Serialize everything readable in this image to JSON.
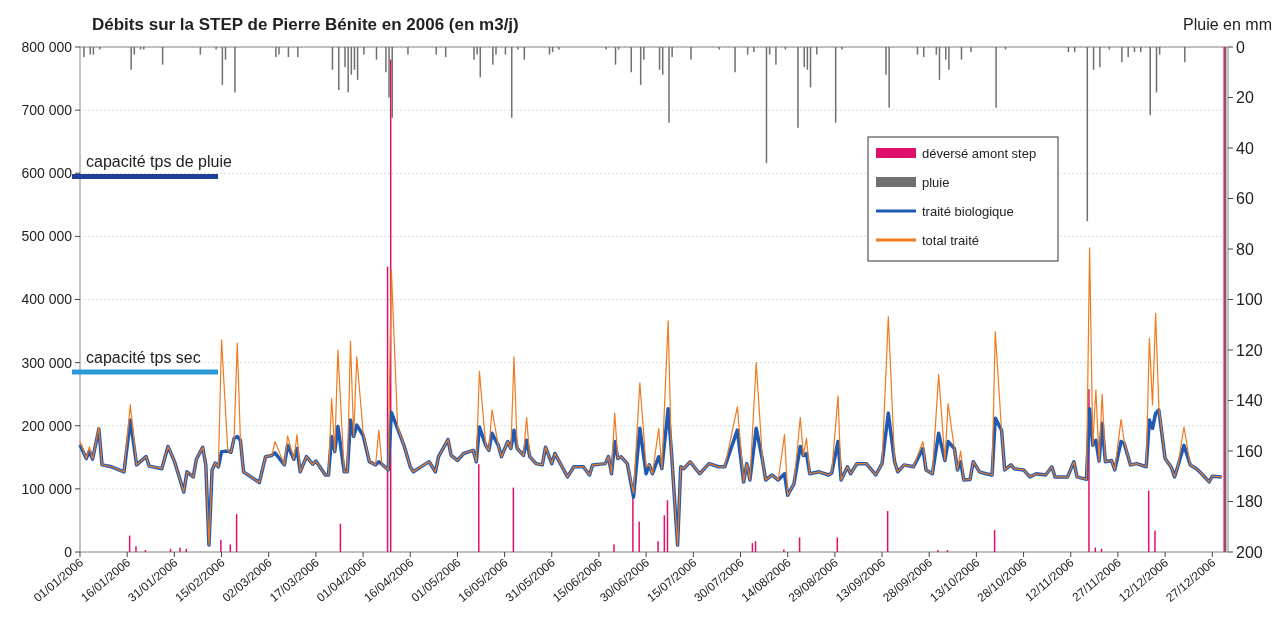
{
  "chart_data": {
    "type": "line",
    "title": "Débits sur la  STEP de Pierre Bénite en 2006 (en m3/j)",
    "y2label": "Pluie en mm",
    "xlim": [
      "2006-01-01",
      "2007-01-01"
    ],
    "xticks": [
      {
        "value": "2006-01-01",
        "label": "01/01/2006"
      },
      {
        "value": "2006-01-16",
        "label": "16/01/2006"
      },
      {
        "value": "2006-01-31",
        "label": "31/01/2006"
      },
      {
        "value": "2006-02-15",
        "label": "15/02/2006"
      },
      {
        "value": "2006-03-02",
        "label": "02/03/2006"
      },
      {
        "value": "2006-03-17",
        "label": "17/03/2006"
      },
      {
        "value": "2006-04-01",
        "label": "01/04/2006"
      },
      {
        "value": "2006-04-16",
        "label": "16/04/2006"
      },
      {
        "value": "2006-05-01",
        "label": "01/05/2006"
      },
      {
        "value": "2006-05-16",
        "label": "16/05/2006"
      },
      {
        "value": "2006-05-31",
        "label": "31/05/2006"
      },
      {
        "value": "2006-06-15",
        "label": "15/06/2006"
      },
      {
        "value": "2006-06-30",
        "label": "30/06/2006"
      },
      {
        "value": "2006-07-15",
        "label": "15/07/2006"
      },
      {
        "value": "2006-07-30",
        "label": "30/07/2006"
      },
      {
        "value": "2006-08-14",
        "label": "14/08/2006"
      },
      {
        "value": "2006-08-29",
        "label": "29/08/2006"
      },
      {
        "value": "2006-09-13",
        "label": "13/09/2006"
      },
      {
        "value": "2006-09-28",
        "label": "28/09/2006"
      },
      {
        "value": "2006-10-13",
        "label": "13/10/2006"
      },
      {
        "value": "2006-10-28",
        "label": "28/10/2006"
      },
      {
        "value": "2006-11-12",
        "label": "12/11/2006"
      },
      {
        "value": "2006-11-27",
        "label": "27/11/2006"
      },
      {
        "value": "2006-12-12",
        "label": "12/12/2006"
      },
      {
        "value": "2006-12-27",
        "label": "27/12/2006"
      }
    ],
    "ylim": [
      0,
      800000
    ],
    "yticks": [
      {
        "value": 0,
        "label": "0"
      },
      {
        "value": 100000,
        "label": "100 000"
      },
      {
        "value": 200000,
        "label": "200 000"
      },
      {
        "value": 300000,
        "label": "300 000"
      },
      {
        "value": 400000,
        "label": "400 000"
      },
      {
        "value": 500000,
        "label": "500 000"
      },
      {
        "value": 600000,
        "label": "600 000"
      },
      {
        "value": 700000,
        "label": "700 000"
      },
      {
        "value": 800000,
        "label": "800 000"
      }
    ],
    "y2lim": [
      200,
      0
    ],
    "y2ticks": [
      0,
      20,
      40,
      60,
      80,
      100,
      120,
      140,
      160,
      180,
      200
    ],
    "grid": "y",
    "legend": "top right",
    "ref_lines": [
      {
        "axis": "y",
        "value": 595000,
        "label": "capacité tps de pluie",
        "color": "#1f3f99"
      },
      {
        "axis": "y",
        "value": 285000,
        "label": "capacité tps sec",
        "color": "#2b9ad6"
      }
    ],
    "x": [
      "2006-01-01",
      "2006-01-03",
      "2006-01-04",
      "2006-01-05",
      "2006-01-07",
      "2006-01-08",
      "2006-01-11",
      "2006-01-15",
      "2006-01-17",
      "2006-01-19",
      "2006-01-22",
      "2006-01-23",
      "2006-01-27",
      "2006-01-29",
      "2006-01-31",
      "2006-02-03",
      "2006-02-04",
      "2006-02-06",
      "2006-02-07",
      "2006-02-09",
      "2006-02-10",
      "2006-02-11",
      "2006-02-12",
      "2006-02-13",
      "2006-02-14",
      "2006-02-15",
      "2006-02-17",
      "2006-02-18",
      "2006-02-19",
      "2006-02-20",
      "2006-02-21",
      "2006-02-22",
      "2006-02-27",
      "2006-03-01",
      "2006-03-03",
      "2006-03-04",
      "2006-03-07",
      "2006-03-08",
      "2006-03-10",
      "2006-03-11",
      "2006-03-12",
      "2006-03-14",
      "2006-03-16",
      "2006-03-17",
      "2006-03-20",
      "2006-03-21",
      "2006-03-22",
      "2006-03-23",
      "2006-03-24",
      "2006-03-26",
      "2006-03-27",
      "2006-03-28",
      "2006-03-29",
      "2006-03-30",
      "2006-04-01",
      "2006-04-03",
      "2006-04-05",
      "2006-04-06",
      "2006-04-07",
      "2006-04-09",
      "2006-04-10",
      "2006-04-12",
      "2006-04-14",
      "2006-04-16",
      "2006-04-17",
      "2006-04-21",
      "2006-04-22",
      "2006-04-24",
      "2006-04-25",
      "2006-04-28",
      "2006-04-29",
      "2006-05-01",
      "2006-05-03",
      "2006-05-06",
      "2006-05-07",
      "2006-05-08",
      "2006-05-10",
      "2006-05-11",
      "2006-05-12",
      "2006-05-14",
      "2006-05-15",
      "2006-05-17",
      "2006-05-18",
      "2006-05-19",
      "2006-05-20",
      "2006-05-22",
      "2006-05-23",
      "2006-05-24",
      "2006-05-26",
      "2006-05-28",
      "2006-05-29",
      "2006-05-31",
      "2006-06-01",
      "2006-06-05",
      "2006-06-07",
      "2006-06-10",
      "2006-06-12",
      "2006-06-13",
      "2006-06-17",
      "2006-06-18",
      "2006-06-19",
      "2006-06-20",
      "2006-06-21",
      "2006-06-22",
      "2006-06-24",
      "2006-06-26",
      "2006-06-28",
      "2006-06-30",
      "2006-07-01",
      "2006-07-02",
      "2006-07-04",
      "2006-07-05",
      "2006-07-07",
      "2006-07-08",
      "2006-07-10",
      "2006-07-11",
      "2006-07-12",
      "2006-07-14",
      "2006-07-17",
      "2006-07-20",
      "2006-07-23",
      "2006-07-25",
      "2006-07-29",
      "2006-07-31",
      "2006-08-01",
      "2006-08-02",
      "2006-08-04",
      "2006-08-06",
      "2006-08-07",
      "2006-08-09",
      "2006-08-11",
      "2006-08-13",
      "2006-08-14",
      "2006-08-16",
      "2006-08-18",
      "2006-08-19",
      "2006-08-20",
      "2006-08-21",
      "2006-08-24",
      "2006-08-27",
      "2006-08-28",
      "2006-08-30",
      "2006-08-31",
      "2006-09-02",
      "2006-09-03",
      "2006-09-05",
      "2006-09-08",
      "2006-09-11",
      "2006-09-13",
      "2006-09-15",
      "2006-09-17",
      "2006-09-18",
      "2006-09-20",
      "2006-09-23",
      "2006-09-26",
      "2006-09-27",
      "2006-09-29",
      "2006-10-01",
      "2006-10-03",
      "2006-10-04",
      "2006-10-06",
      "2006-10-07",
      "2006-10-08",
      "2006-10-09",
      "2006-10-11",
      "2006-10-12",
      "2006-10-14",
      "2006-10-16",
      "2006-10-18",
      "2006-10-19",
      "2006-10-21",
      "2006-10-22",
      "2006-10-24",
      "2006-10-25",
      "2006-10-28",
      "2006-10-30",
      "2006-11-01",
      "2006-11-04",
      "2006-11-06",
      "2006-11-07",
      "2006-11-11",
      "2006-11-13",
      "2006-11-14",
      "2006-11-17",
      "2006-11-18",
      "2006-11-19",
      "2006-11-20",
      "2006-11-21",
      "2006-11-22",
      "2006-11-23",
      "2006-11-25",
      "2006-11-26",
      "2006-11-28",
      "2006-11-29",
      "2006-12-01",
      "2006-12-03",
      "2006-12-06",
      "2006-12-07",
      "2006-12-08",
      "2006-12-09",
      "2006-12-10",
      "2006-12-12",
      "2006-12-14",
      "2006-12-15",
      "2006-12-16",
      "2006-12-18",
      "2006-12-20",
      "2006-12-22",
      "2006-12-24",
      "2006-12-26",
      "2006-12-27",
      "2006-12-30"
    ],
    "series": [
      {
        "name": "déversé amont step",
        "type": "bar",
        "color": "#e0106a",
        "x": [
          "2006-01-17",
          "2006-01-19",
          "2006-01-22",
          "2006-01-30",
          "2006-02-02",
          "2006-02-04",
          "2006-02-15",
          "2006-02-18",
          "2006-02-20",
          "2006-03-25",
          "2006-04-09",
          "2006-04-10",
          "2006-05-08",
          "2006-05-19",
          "2006-06-20",
          "2006-06-26",
          "2006-06-28",
          "2006-07-04",
          "2006-07-06",
          "2006-07-07",
          "2006-08-03",
          "2006-08-04",
          "2006-08-13",
          "2006-08-18",
          "2006-08-30",
          "2006-09-15",
          "2006-10-01",
          "2006-10-04",
          "2006-10-19",
          "2006-11-18",
          "2006-11-20",
          "2006-11-22",
          "2006-12-07",
          "2006-12-09",
          "2006-12-31"
        ],
        "values": [
          26000,
          9000,
          3000,
          5000,
          7000,
          5000,
          19000,
          12000,
          60000,
          45000,
          452000,
          780000,
          139000,
          102000,
          12000,
          86000,
          48000,
          17000,
          58000,
          82000,
          14000,
          17000,
          4000,
          23000,
          23000,
          65000,
          3000,
          3000,
          35000,
          258000,
          7000,
          5000,
          97000,
          34000,
          800000
        ]
      },
      {
        "name": "pluie",
        "type": "bar",
        "axis": "y2",
        "color": "#707070",
        "x": [
          "2006-01-02",
          "2006-01-04",
          "2006-01-05",
          "2006-01-07",
          "2006-01-17",
          "2006-01-18",
          "2006-01-20",
          "2006-01-21",
          "2006-01-27",
          "2006-02-08",
          "2006-02-13",
          "2006-02-15",
          "2006-02-16",
          "2006-02-19",
          "2006-03-04",
          "2006-03-05",
          "2006-03-08",
          "2006-03-11",
          "2006-03-22",
          "2006-03-24",
          "2006-03-26",
          "2006-03-27",
          "2006-03-28",
          "2006-03-29",
          "2006-03-30",
          "2006-04-01",
          "2006-04-05",
          "2006-04-08",
          "2006-04-09",
          "2006-04-10",
          "2006-04-15",
          "2006-04-24",
          "2006-04-27",
          "2006-05-06",
          "2006-05-07",
          "2006-05-08",
          "2006-05-12",
          "2006-05-13",
          "2006-05-16",
          "2006-05-18",
          "2006-05-20",
          "2006-05-22",
          "2006-05-30",
          "2006-05-31",
          "2006-06-02",
          "2006-06-17",
          "2006-06-20",
          "2006-06-21",
          "2006-06-25",
          "2006-06-28",
          "2006-06-29",
          "2006-07-04",
          "2006-07-05",
          "2006-07-07",
          "2006-07-08",
          "2006-07-14",
          "2006-07-23",
          "2006-07-28",
          "2006-08-01",
          "2006-08-03",
          "2006-08-07",
          "2006-08-08",
          "2006-08-10",
          "2006-08-13",
          "2006-08-17",
          "2006-08-19",
          "2006-08-20",
          "2006-08-21",
          "2006-08-23",
          "2006-08-29",
          "2006-08-31",
          "2006-09-14",
          "2006-09-15",
          "2006-09-24",
          "2006-09-26",
          "2006-09-30",
          "2006-10-01",
          "2006-10-03",
          "2006-10-04",
          "2006-10-08",
          "2006-10-11",
          "2006-10-19",
          "2006-10-22",
          "2006-11-11",
          "2006-11-13",
          "2006-11-17",
          "2006-11-19",
          "2006-11-21",
          "2006-11-24",
          "2006-11-28",
          "2006-11-30",
          "2006-12-02",
          "2006-12-04",
          "2006-12-07",
          "2006-12-09",
          "2006-12-10",
          "2006-12-18",
          "2006-12-31"
        ],
        "values": [
          4,
          3,
          3,
          1,
          9,
          3,
          1,
          1,
          7,
          3,
          1,
          15,
          5,
          18,
          4,
          3,
          4,
          4,
          9,
          17,
          8,
          18,
          11,
          9,
          13,
          3,
          5,
          10,
          20,
          28,
          3,
          3,
          4,
          5,
          3,
          12,
          7,
          3,
          3,
          28,
          1,
          5,
          3,
          2,
          1,
          1,
          7,
          1,
          10,
          15,
          5,
          9,
          11,
          30,
          4,
          5,
          1,
          10,
          3,
          2,
          46,
          3,
          7,
          1,
          32,
          8,
          9,
          16,
          3,
          30,
          1,
          11,
          24,
          3,
          4,
          3,
          13,
          5,
          9,
          5,
          2,
          24,
          1,
          2,
          2,
          69,
          9,
          8,
          1,
          6,
          4,
          2,
          2,
          27,
          18,
          3,
          6,
          200
        ]
      },
      {
        "name": "traité biologique",
        "type": "line",
        "color": "#1f5bb5",
        "values": [
          170000,
          148000,
          160000,
          147000,
          195000,
          138000,
          135000,
          127000,
          209000,
          138000,
          151000,
          136000,
          132000,
          167000,
          144000,
          95000,
          127000,
          119000,
          147000,
          166000,
          138000,
          11000,
          130000,
          141000,
          135000,
          159000,
          160000,
          158000,
          180000,
          183000,
          177000,
          127000,
          110000,
          151000,
          153000,
          157000,
          138000,
          169000,
          147000,
          164000,
          127000,
          151000,
          139000,
          144000,
          122000,
          122000,
          183000,
          159000,
          199000,
          127000,
          127000,
          209000,
          183000,
          201000,
          185000,
          143000,
          138000,
          143000,
          139000,
          130000,
          221000,
          195000,
          169000,
          135000,
          127000,
          140000,
          143000,
          127000,
          151000,
          178000,
          153000,
          145000,
          156000,
          161000,
          143000,
          198000,
          169000,
          161000,
          188000,
          169000,
          151000,
          175000,
          164000,
          193000,
          164000,
          153000,
          177000,
          151000,
          140000,
          138000,
          166000,
          140000,
          156000,
          119000,
          135000,
          135000,
          122000,
          138000,
          140000,
          151000,
          124000,
          175000,
          148000,
          151000,
          140000,
          87000,
          196000,
          124000,
          138000,
          124000,
          151000,
          132000,
          227000,
          161000,
          11000,
          135000,
          132000,
          143000,
          124000,
          140000,
          135000,
          135000,
          193000,
          111000,
          140000,
          114000,
          196000,
          145000,
          114000,
          122000,
          114000,
          124000,
          90000,
          108000,
          167000,
          153000,
          156000,
          124000,
          127000,
          122000,
          125000,
          175000,
          114000,
          135000,
          124000,
          140000,
          140000,
          122000,
          140000,
          220000,
          143000,
          127000,
          138000,
          135000,
          164000,
          130000,
          124000,
          188000,
          145000,
          175000,
          164000,
          130000,
          143000,
          114000,
          115000,
          143000,
          127000,
          124000,
          122000,
          212000,
          193000,
          130000,
          138000,
          132000,
          130000,
          119000,
          124000,
          122000,
          135000,
          119000,
          119000,
          143000,
          119000,
          115000,
          227000,
          169000,
          177000,
          144000,
          204000,
          143000,
          145000,
          130000,
          175000,
          172000,
          138000,
          140000,
          135000,
          209000,
          196000,
          220000,
          225000,
          148000,
          134000,
          119000,
          135000,
          169000,
          138000,
          132000,
          122000,
          111000,
          120000,
          119000
        ]
      },
      {
        "name": "total traité",
        "type": "line",
        "color": "#f07a1f",
        "values": [
          175000,
          148000,
          167000,
          147000,
          198000,
          138000,
          135000,
          127000,
          233000,
          138000,
          151000,
          136000,
          132000,
          167000,
          144000,
          95000,
          127000,
          119000,
          147000,
          166000,
          138000,
          11000,
          130000,
          141000,
          135000,
          336000,
          160000,
          158000,
          180000,
          331000,
          177000,
          127000,
          110000,
          151000,
          153000,
          175000,
          138000,
          184000,
          147000,
          186000,
          127000,
          151000,
          139000,
          144000,
          122000,
          122000,
          243000,
          159000,
          320000,
          127000,
          127000,
          334000,
          183000,
          309000,
          190000,
          143000,
          138000,
          193000,
          139000,
          130000,
          447000,
          198000,
          169000,
          135000,
          127000,
          140000,
          143000,
          127000,
          151000,
          178000,
          153000,
          145000,
          156000,
          161000,
          143000,
          286000,
          169000,
          161000,
          225000,
          169000,
          151000,
          175000,
          164000,
          309000,
          164000,
          153000,
          213000,
          151000,
          140000,
          138000,
          166000,
          140000,
          156000,
          119000,
          135000,
          135000,
          122000,
          138000,
          140000,
          151000,
          124000,
          220000,
          148000,
          151000,
          140000,
          93000,
          268000,
          135000,
          138000,
          124000,
          196000,
          132000,
          366000,
          161000,
          11000,
          135000,
          132000,
          143000,
          124000,
          140000,
          135000,
          135000,
          230000,
          111000,
          140000,
          114000,
          300000,
          145000,
          114000,
          122000,
          114000,
          186000,
          90000,
          108000,
          213000,
          153000,
          180000,
          124000,
          127000,
          122000,
          125000,
          247000,
          114000,
          135000,
          124000,
          140000,
          140000,
          122000,
          140000,
          373000,
          143000,
          127000,
          138000,
          135000,
          175000,
          130000,
          124000,
          281000,
          145000,
          235000,
          164000,
          130000,
          160000,
          114000,
          115000,
          143000,
          127000,
          124000,
          122000,
          349000,
          193000,
          130000,
          138000,
          132000,
          130000,
          119000,
          124000,
          122000,
          135000,
          119000,
          119000,
          143000,
          119000,
          115000,
          482000,
          169000,
          257000,
          144000,
          250000,
          143000,
          145000,
          130000,
          210000,
          175000,
          138000,
          140000,
          135000,
          339000,
          233000,
          378000,
          230000,
          148000,
          134000,
          119000,
          135000,
          198000,
          138000,
          132000,
          122000,
          111000,
          120000,
          119000
        ]
      }
    ]
  }
}
